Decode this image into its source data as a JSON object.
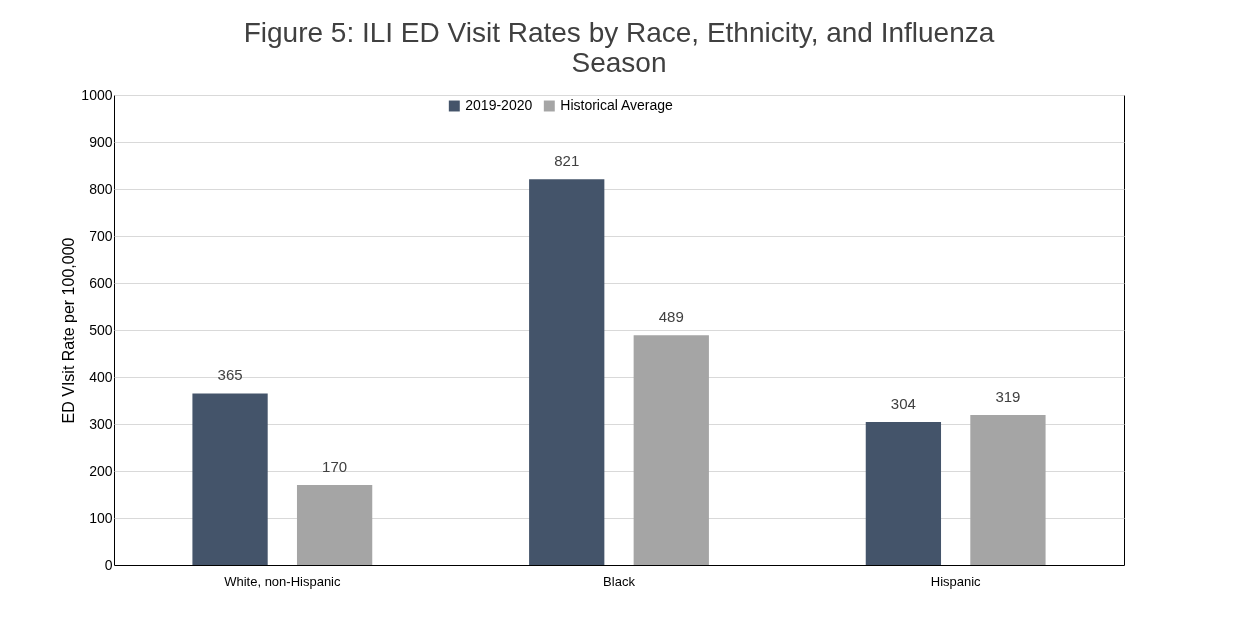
{
  "chart_data": {
    "type": "bar",
    "title": "Figure 5: ILI ED Visit Rates by Race, Ethnicity, and Influenza Season",
    "ylabel": "ED VIsit Rate per 100,000",
    "categories": [
      "White, non-Hispanic",
      "Black",
      "Hispanic"
    ],
    "series": [
      {
        "name": "2019-2020",
        "color": "#44546a",
        "values": [
          365,
          821,
          304
        ]
      },
      {
        "name": "Historical Average",
        "color": "#a5a5a5",
        "values": [
          170,
          489,
          319
        ]
      }
    ],
    "ylim": [
      0,
      1000
    ],
    "yticks": [
      0,
      100,
      200,
      300,
      400,
      500,
      600,
      700,
      800,
      900,
      1000
    ],
    "grid": "y",
    "legend": "top",
    "data_labels": true
  }
}
